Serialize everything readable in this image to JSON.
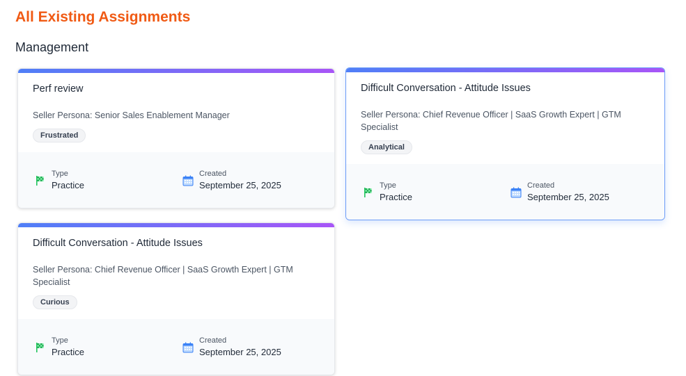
{
  "page_title": "All Existing Assignments",
  "section_title": "Management",
  "colors": {
    "title": "#f05a14",
    "gradient_start": "#4f7ff7",
    "gradient_end": "#a855f7",
    "flag": "#22c55e",
    "calendar": "#3b82f6"
  },
  "cards": [
    {
      "title": "Perf review",
      "persona": "Seller Persona: Senior Sales Enablement Manager",
      "tag": "Frustrated",
      "type_label": "Type",
      "type": "Practice",
      "created_label": "Created",
      "created": "September 25, 2025",
      "icons": [
        "flag-icon",
        "calendar-icon"
      ]
    },
    {
      "title": "Difficult Conversation - Attitude Issues",
      "persona": "Seller Persona: Chief Revenue Officer | SaaS Growth Expert | GTM Specialist",
      "tag": "Analytical",
      "type_label": "Type",
      "type": "Practice",
      "created_label": "Created",
      "created": "September 25, 2025",
      "icons": [
        "flag-icon",
        "calendar-icon"
      ]
    },
    {
      "title": "Difficult Conversation - Attitude Issues",
      "persona": "Seller Persona: Chief Revenue Officer | SaaS Growth Expert | GTM Specialist",
      "tag": "Curious",
      "type_label": "Type",
      "type": "Practice",
      "created_label": "Created",
      "created": "September 25, 2025",
      "icons": [
        "flag-icon",
        "calendar-icon"
      ]
    }
  ]
}
